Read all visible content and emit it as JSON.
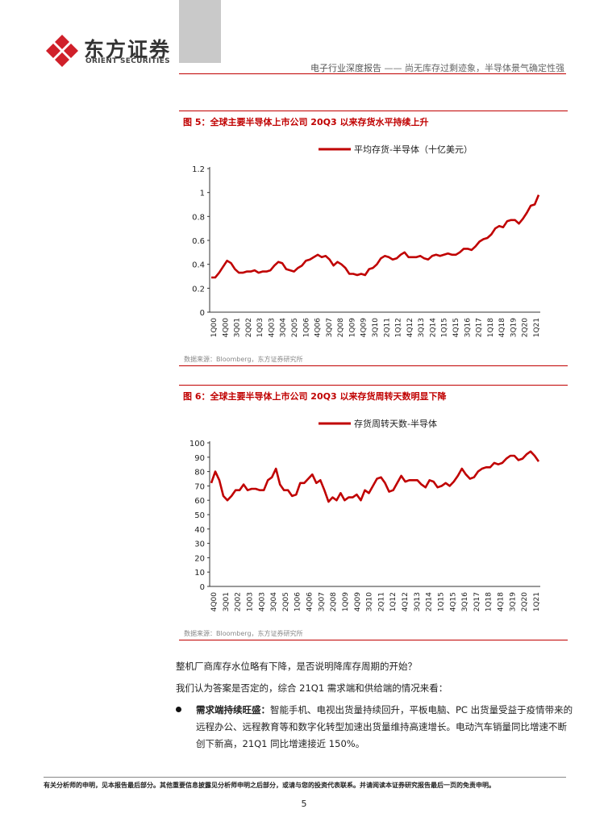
{
  "header": {
    "logo_cn": "东方证券",
    "logo_en": "ORIENT SECURITIES",
    "report_type": "电子行业深度报告",
    "report_subtitle": "—— 尚无库存过剩迹象，半导体景气确定性强"
  },
  "figures": [
    {
      "title": "图 5：全球主要半导体上市公司 20Q3 以来存货水平持续上升",
      "source": "数据来源：Bloomberg，东方证券研究所"
    },
    {
      "title": "图 6：全球主要半导体上市公司 20Q3 以来存货周转天数明显下降",
      "source": "数据来源：Bloomberg，东方证券研究所"
    }
  ],
  "chart_data": [
    {
      "type": "line",
      "legend": "平均存货-半导体（十亿美元）",
      "legend_position": "top-center",
      "color": "#c00000",
      "ylim": [
        0,
        1.2
      ],
      "yticks": [
        "0",
        "0.2",
        "0.4",
        "0.6",
        "0.8",
        "1",
        "1.2"
      ],
      "tick_labels": [
        "1Q00",
        "4Q00",
        "3Q01",
        "2Q02",
        "1Q03",
        "4Q03",
        "3Q04",
        "2Q05",
        "1Q06",
        "4Q06",
        "3Q07",
        "2Q08",
        "1Q09",
        "4Q09",
        "3Q10",
        "2Q11",
        "1Q12",
        "4Q12",
        "3Q13",
        "2Q14",
        "1Q15",
        "4Q15",
        "3Q16",
        "2Q17",
        "1Q18",
        "4Q18",
        "3Q19",
        "2Q20",
        "1Q21"
      ],
      "values": [
        0.29,
        0.29,
        0.33,
        0.38,
        0.43,
        0.41,
        0.36,
        0.33,
        0.33,
        0.34,
        0.34,
        0.35,
        0.33,
        0.34,
        0.34,
        0.35,
        0.39,
        0.42,
        0.41,
        0.36,
        0.35,
        0.34,
        0.37,
        0.39,
        0.43,
        0.44,
        0.46,
        0.48,
        0.46,
        0.47,
        0.44,
        0.39,
        0.42,
        0.4,
        0.37,
        0.32,
        0.32,
        0.31,
        0.32,
        0.31,
        0.36,
        0.37,
        0.4,
        0.45,
        0.47,
        0.46,
        0.44,
        0.45,
        0.48,
        0.5,
        0.46,
        0.46,
        0.46,
        0.47,
        0.45,
        0.44,
        0.47,
        0.48,
        0.47,
        0.48,
        0.49,
        0.48,
        0.48,
        0.5,
        0.53,
        0.53,
        0.52,
        0.55,
        0.59,
        0.61,
        0.62,
        0.65,
        0.7,
        0.72,
        0.71,
        0.76,
        0.77,
        0.77,
        0.74,
        0.78,
        0.83,
        0.89,
        0.9,
        0.98
      ]
    },
    {
      "type": "line",
      "legend": "存货周转天数-半导体",
      "legend_position": "top-center",
      "color": "#c00000",
      "ylim": [
        0,
        100
      ],
      "yticks": [
        "0",
        "10",
        "20",
        "30",
        "40",
        "50",
        "60",
        "70",
        "80",
        "90",
        "100"
      ],
      "tick_labels": [
        "4Q00",
        "3Q01",
        "2Q02",
        "1Q03",
        "4Q03",
        "3Q04",
        "2Q05",
        "1Q06",
        "4Q06",
        "3Q07",
        "2Q08",
        "1Q09",
        "4Q09",
        "3Q10",
        "2Q11",
        "1Q12",
        "4Q12",
        "3Q13",
        "2Q14",
        "1Q15",
        "4Q15",
        "3Q16",
        "2Q17",
        "1Q18",
        "4Q18",
        "3Q19",
        "2Q20",
        "1Q21"
      ],
      "values": [
        72,
        80,
        74,
        63,
        60,
        63,
        67,
        67,
        71,
        67,
        68,
        68,
        67,
        67,
        74,
        76,
        82,
        71,
        67,
        67,
        63,
        64,
        72,
        72,
        75,
        78,
        72,
        74,
        67,
        59,
        62,
        60,
        65,
        60,
        62,
        62,
        64,
        60,
        67,
        65,
        70,
        75,
        76,
        72,
        66,
        67,
        72,
        77,
        73,
        74,
        74,
        74,
        71,
        69,
        74,
        73,
        69,
        70,
        72,
        70,
        73,
        77,
        82,
        78,
        75,
        76,
        80,
        82,
        83,
        83,
        86,
        85,
        86,
        89,
        91,
        91,
        88,
        89,
        92,
        94,
        91,
        87
      ]
    }
  ],
  "body": {
    "p1": "整机厂商库存水位略有下降，是否说明降库存周期的开始？",
    "p2": "我们认为答案是否定的，综合 21Q1 需求端和供给端的情况来看：",
    "bullet_bold": "需求端持续旺盛：",
    "bullet_line1": "智能手机、电视出货量持续回升，平板电脑、PC 出货量受益于疫情带来的",
    "bullet_line2": "远程办公、远程教育等和数字化转型加速出货量维持高速增长。电动汽车销量同比增速不断",
    "bullet_line3": "创下新高，21Q1 同比增速接近 150%。"
  },
  "footer": {
    "disclaimer": "有关分析师的申明，见本报告最后部分。其他重要信息披露见分析师申明之后部分，或请与您的投资代表联系。并请阅读本证券研究报告最后一页的免责申明。",
    "page": "5"
  }
}
